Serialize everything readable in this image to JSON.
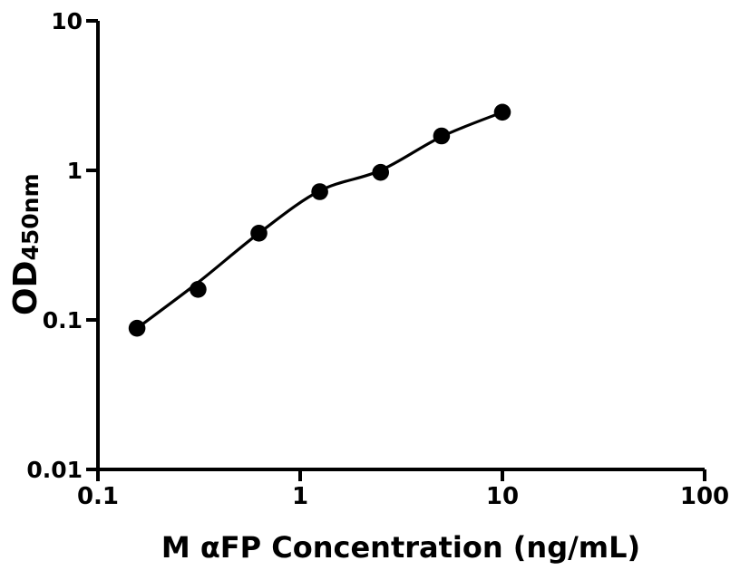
{
  "figure": {
    "background_color": "#ffffff",
    "axis_color": "#000000"
  },
  "chart": {
    "xlabel": "M αFP Concentration (ng/mL)",
    "ylabel_main": "OD",
    "ylabel_sub": "450nm",
    "x_ticks": [
      {
        "label": "0.1",
        "value": 0.1
      },
      {
        "label": "1",
        "value": 1
      },
      {
        "label": "10",
        "value": 10
      },
      {
        "label": "100",
        "value": 100
      }
    ],
    "y_ticks": [
      {
        "label": "10",
        "value": 10
      },
      {
        "label": "1",
        "value": 1
      },
      {
        "label": "0.1",
        "value": 0.1
      },
      {
        "label": "0.01",
        "value": 0.01
      }
    ]
  },
  "chart_data": {
    "type": "scatter",
    "title": "",
    "xlabel": "M αFP Concentration (ng/mL)",
    "ylabel": "OD450nm",
    "x_scale": "log10",
    "y_scale": "log10",
    "xlim": [
      0.1,
      100
    ],
    "ylim": [
      0.01,
      10
    ],
    "grid": false,
    "legend": false,
    "x": [
      0.156,
      0.3125,
      0.625,
      1.25,
      2.5,
      5,
      10
    ],
    "y": [
      0.088,
      0.16,
      0.38,
      0.72,
      0.97,
      1.7,
      2.45
    ],
    "fit_curve_y": [
      0.088,
      0.178,
      0.38,
      0.73,
      1.0,
      1.68,
      2.45
    ],
    "marker_color": "#000000",
    "curve_color": "#000000"
  }
}
